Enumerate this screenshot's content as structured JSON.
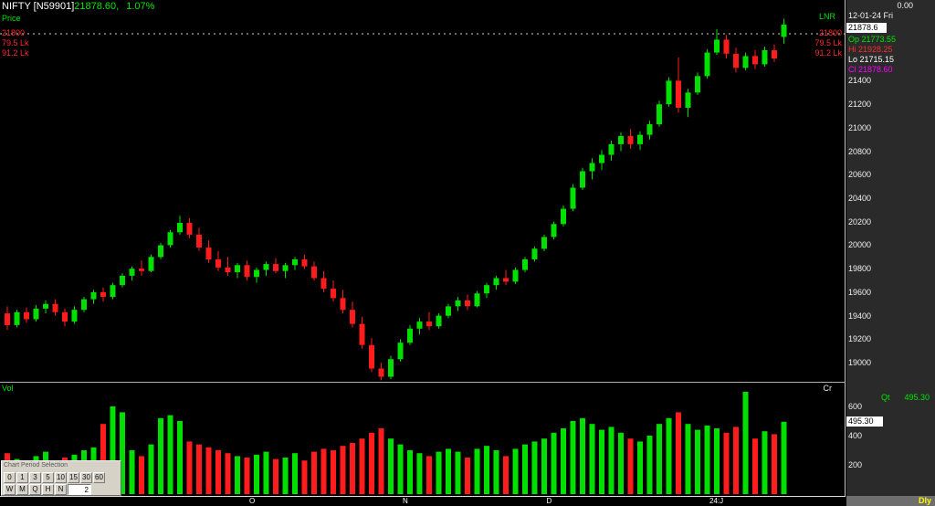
{
  "header": {
    "symbol": "NIFTY [N59901]",
    "price": "21878.60,",
    "change": "1.07%",
    "pane_label": "Price",
    "indicator": "LNR"
  },
  "levels": {
    "price": "21800",
    "qty1": "79.5 Lk",
    "qty2": "91.2 Lk"
  },
  "volume_pane": {
    "label": "Vol",
    "unit": "Cr"
  },
  "right_panel": {
    "top_value": "0.00",
    "date": "12-01-24 Fri",
    "ltp_box": "21878.6",
    "ohlc_rows": [
      {
        "label": "Op",
        "value": "21773.55",
        "color": "#00e400"
      },
      {
        "label": "Hi",
        "value": "21928.25",
        "color": "#ff2a2a"
      },
      {
        "label": "Lo",
        "value": "21715.15",
        "color": "#ffffff"
      },
      {
        "label": "Cl",
        "value": "21878.60",
        "color": "#ff00ff"
      }
    ],
    "price_scale": [
      21400,
      21200,
      21000,
      20800,
      20600,
      20400,
      20200,
      20000,
      19800,
      19600,
      19400,
      19200,
      19000
    ],
    "qt_label": "Qt",
    "qt_value": "495.30",
    "volume_scale": [
      600,
      400,
      200
    ],
    "volume_box": "495.30",
    "periodicity": "Dly"
  },
  "x_axis": {
    "note": "month markers rendered from chart_data.month_markers"
  },
  "period_selector": {
    "title": "Chart Period Selection",
    "row1": [
      "0",
      "1",
      "3",
      "5",
      "10",
      "15",
      "30",
      "60"
    ],
    "row2": [
      "W",
      "M",
      "Q",
      "H",
      "N"
    ],
    "input_value": "2"
  },
  "chart_data": {
    "type": "candlestick",
    "symbol": "NIFTY",
    "timeframe": "Daily",
    "title": "NIFTY daily price with volume",
    "ylim": [
      18830,
      21960
    ],
    "volume_ylim": [
      0,
      780
    ],
    "alert_level": 21800,
    "last_quote": {
      "date": "12-01-24",
      "open": 21773.55,
      "high": 21928.25,
      "low": 21715.15,
      "close": 21878.6,
      "volume_cr": 495.3,
      "change_pct": 1.07
    },
    "colors": {
      "up": "#00e000",
      "down": "#ff1c1c"
    },
    "month_markers": [
      {
        "label": "O",
        "index": 26
      },
      {
        "label": "N",
        "index": 42
      },
      {
        "label": "D",
        "index": 57
      },
      {
        "label": "24:J",
        "index": 74
      }
    ],
    "candles": [
      [
        19420,
        19480,
        19280,
        19320,
        280
      ],
      [
        19320,
        19450,
        19300,
        19430,
        240
      ],
      [
        19430,
        19470,
        19340,
        19370,
        210
      ],
      [
        19370,
        19490,
        19350,
        19460,
        260
      ],
      [
        19460,
        19530,
        19420,
        19500,
        290
      ],
      [
        19500,
        19540,
        19400,
        19430,
        230
      ],
      [
        19430,
        19460,
        19310,
        19350,
        250
      ],
      [
        19350,
        19480,
        19330,
        19450,
        270
      ],
      [
        19450,
        19560,
        19430,
        19540,
        300
      ],
      [
        19540,
        19620,
        19500,
        19600,
        320
      ],
      [
        19600,
        19640,
        19520,
        19560,
        480
      ],
      [
        19560,
        19680,
        19540,
        19660,
        600
      ],
      [
        19660,
        19760,
        19640,
        19740,
        560
      ],
      [
        19740,
        19820,
        19700,
        19800,
        300
      ],
      [
        19800,
        19870,
        19740,
        19780,
        260
      ],
      [
        19780,
        19920,
        19770,
        19900,
        340
      ],
      [
        19900,
        20020,
        19880,
        20000,
        520
      ],
      [
        20000,
        20130,
        19980,
        20110,
        540
      ],
      [
        20110,
        20250,
        20090,
        20190,
        500
      ],
      [
        20190,
        20230,
        20060,
        20090,
        360
      ],
      [
        20090,
        20150,
        19950,
        19980,
        340
      ],
      [
        19980,
        20040,
        19850,
        19880,
        320
      ],
      [
        19880,
        19950,
        19780,
        19810,
        300
      ],
      [
        19810,
        19900,
        19740,
        19770,
        280
      ],
      [
        19770,
        19850,
        19720,
        19830,
        260
      ],
      [
        19830,
        19870,
        19700,
        19730,
        250
      ],
      [
        19730,
        19810,
        19680,
        19790,
        270
      ],
      [
        19790,
        19860,
        19740,
        19840,
        290
      ],
      [
        19840,
        19890,
        19760,
        19780,
        240
      ],
      [
        19780,
        19850,
        19720,
        19830,
        250
      ],
      [
        19830,
        19900,
        19790,
        19880,
        280
      ],
      [
        19880,
        19920,
        19800,
        19820,
        230
      ],
      [
        19820,
        19860,
        19700,
        19720,
        290
      ],
      [
        19720,
        19780,
        19600,
        19630,
        310
      ],
      [
        19630,
        19700,
        19520,
        19550,
        300
      ],
      [
        19550,
        19620,
        19420,
        19450,
        330
      ],
      [
        19450,
        19520,
        19300,
        19330,
        350
      ],
      [
        19330,
        19390,
        19120,
        19150,
        380
      ],
      [
        19150,
        19210,
        18920,
        18950,
        420
      ],
      [
        18950,
        19000,
        18850,
        18880,
        450
      ],
      [
        18880,
        19060,
        18860,
        19030,
        380
      ],
      [
        19030,
        19200,
        19010,
        19170,
        340
      ],
      [
        19170,
        19320,
        19150,
        19290,
        300
      ],
      [
        19290,
        19380,
        19240,
        19350,
        280
      ],
      [
        19350,
        19430,
        19280,
        19310,
        260
      ],
      [
        19310,
        19420,
        19290,
        19400,
        290
      ],
      [
        19400,
        19500,
        19380,
        19480,
        310
      ],
      [
        19480,
        19560,
        19440,
        19530,
        290
      ],
      [
        19530,
        19580,
        19450,
        19480,
        250
      ],
      [
        19480,
        19610,
        19470,
        19590,
        310
      ],
      [
        19590,
        19680,
        19550,
        19660,
        330
      ],
      [
        19660,
        19740,
        19620,
        19720,
        300
      ],
      [
        19720,
        19790,
        19660,
        19690,
        260
      ],
      [
        19690,
        19810,
        19670,
        19790,
        310
      ],
      [
        19790,
        19900,
        19770,
        19880,
        340
      ],
      [
        19880,
        19990,
        19860,
        19970,
        360
      ],
      [
        19970,
        20090,
        19950,
        20070,
        380
      ],
      [
        20070,
        20200,
        20050,
        20180,
        420
      ],
      [
        20180,
        20340,
        20160,
        20310,
        450
      ],
      [
        20310,
        20520,
        20290,
        20490,
        500
      ],
      [
        20490,
        20660,
        20470,
        20630,
        520
      ],
      [
        20630,
        20740,
        20560,
        20700,
        480
      ],
      [
        20700,
        20810,
        20640,
        20770,
        440
      ],
      [
        20770,
        20890,
        20720,
        20860,
        460
      ],
      [
        20860,
        20960,
        20800,
        20930,
        420
      ],
      [
        20930,
        20990,
        20820,
        20860,
        380
      ],
      [
        20860,
        20970,
        20810,
        20940,
        360
      ],
      [
        20940,
        21060,
        20900,
        21030,
        400
      ],
      [
        21030,
        21230,
        21010,
        21200,
        480
      ],
      [
        21200,
        21430,
        21180,
        21400,
        520
      ],
      [
        21400,
        21600,
        21130,
        21170,
        560
      ],
      [
        21170,
        21330,
        21090,
        21300,
        480
      ],
      [
        21300,
        21470,
        21280,
        21440,
        440
      ],
      [
        21440,
        21670,
        21420,
        21640,
        470
      ],
      [
        21640,
        21840,
        21620,
        21750,
        450
      ],
      [
        21750,
        21790,
        21590,
        21630,
        420
      ],
      [
        21630,
        21680,
        21470,
        21510,
        460
      ],
      [
        21510,
        21640,
        21490,
        21610,
        700
      ],
      [
        21610,
        21660,
        21500,
        21540,
        380
      ],
      [
        21540,
        21690,
        21520,
        21660,
        430
      ],
      [
        21660,
        21710,
        21560,
        21590,
        410
      ],
      [
        21773.55,
        21928.25,
        21715.15,
        21878.6,
        495.3
      ]
    ]
  }
}
